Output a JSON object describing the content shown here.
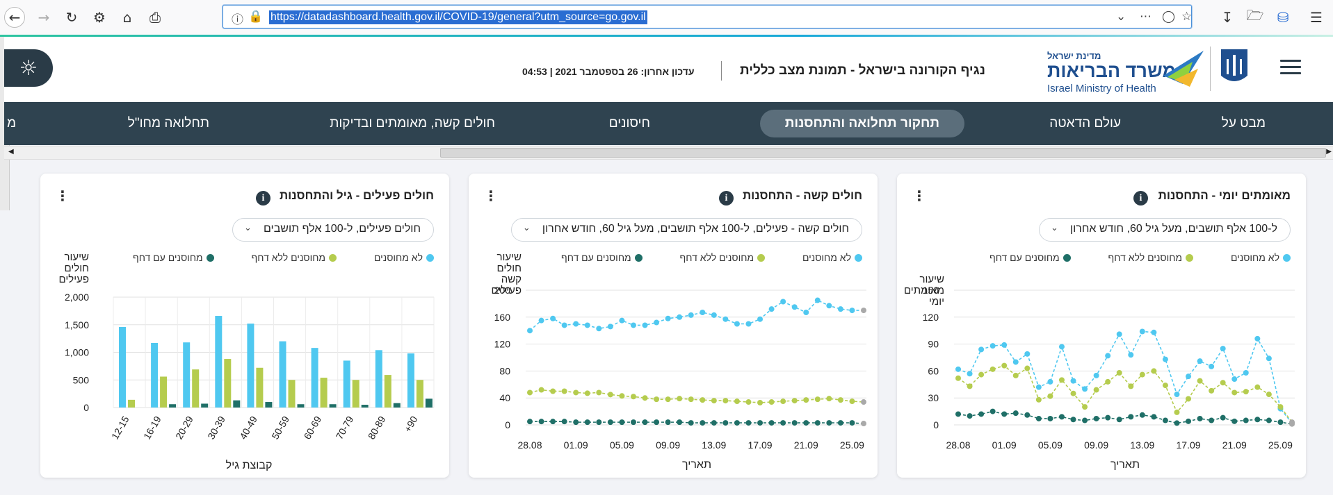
{
  "browser": {
    "url": "https://datadashboard.health.gov.il/COVID-19/general?utm_source=go.gov.il",
    "back_icon": "arrow-left-icon",
    "forward_icon": "arrow-right-icon",
    "reload_icon": "reload-icon",
    "settings_icon": "gear-icon",
    "home_icon": "home-icon",
    "print_icon": "printer-icon"
  },
  "header": {
    "update_text": "עדכון אחרון: 26 בספטמבר 2021 | 04:53",
    "title": "נגיף הקורונה בישראל - תמונת מצב כללית",
    "logo_top": "מדינת ישראל",
    "logo_main": "משרד הבריאות",
    "logo_en": "Israel Ministry of Health"
  },
  "tabs": [
    {
      "label": "מבט על",
      "active": false
    },
    {
      "label": "עולם הדאטה",
      "active": false
    },
    {
      "label": "תחקור תחלואה והתחסנות",
      "active": true
    },
    {
      "label": "חיסונים",
      "active": false
    },
    {
      "label": "חולים קשה, מאומתים ובדיקות",
      "active": false
    },
    {
      "label": "תחלואה מחו\"ל",
      "active": false
    },
    {
      "label": "מ",
      "active": false
    }
  ],
  "legend": {
    "unvaccinated": "לא מחוסנים",
    "no_booster": "מחוסנים ללא דחף",
    "booster": "מחוסנים עם דחף"
  },
  "colors": {
    "unvaccinated": "#4fc8f0",
    "no_booster": "#b5cc4e",
    "booster": "#1f6f67",
    "nav_bg": "#2f4350",
    "active_tab": "#5b6e7b"
  },
  "cards": [
    {
      "title": "מאומתים יומי - התחסנות",
      "dropdown": "ל-100 אלף תושבים, מעל גיל 60, חודש אחרון",
      "chart_data": {
        "type": "line",
        "ylabel": "שיעור מאומתים יומי",
        "xlabel": "תאריך",
        "ylim": [
          0,
          150
        ],
        "yticks": [
          0,
          30,
          60,
          90,
          120,
          150
        ],
        "x": [
          "28.08",
          "29.08",
          "30.08",
          "31.08",
          "01.09",
          "02.09",
          "03.09",
          "04.09",
          "05.09",
          "06.09",
          "07.09",
          "08.09",
          "09.09",
          "10.09",
          "11.09",
          "12.09",
          "13.09",
          "14.09",
          "15.09",
          "16.09",
          "17.09",
          "18.09",
          "19.09",
          "20.09",
          "21.09",
          "22.09",
          "23.09",
          "24.09",
          "25.09",
          "26.09"
        ],
        "xticks": [
          "28.08",
          "01.09",
          "05.09",
          "09.09",
          "13.09",
          "17.09",
          "21.09",
          "25.09"
        ],
        "series": [
          {
            "name": "לא מחוסנים",
            "values": [
              62,
              57,
              84,
              88,
              89,
              70,
              79,
              42,
              48,
              87,
              49,
              40,
              55,
              77,
              101,
              78,
              104,
              103,
              73,
              34,
              54,
              71,
              65,
              85,
              51,
              58,
              96,
              74,
              18,
              2
            ]
          },
          {
            "name": "מחוסנים ללא דחף",
            "values": [
              52,
              43,
              56,
              62,
              66,
              55,
              63,
              28,
              32,
              50,
              35,
              20,
              39,
              48,
              58,
              43,
              56,
              60,
              44,
              14,
              29,
              49,
              38,
              47,
              36,
              37,
              42,
              34,
              20,
              3
            ]
          },
          {
            "name": "מחוסנים עם דחף",
            "values": [
              12,
              10,
              12,
              15,
              12,
              13,
              11,
              7,
              7,
              9,
              6,
              5,
              7,
              8,
              6,
              9,
              11,
              9,
              5,
              2,
              4,
              7,
              5,
              8,
              4,
              5,
              6,
              5,
              3,
              1
            ]
          }
        ]
      }
    },
    {
      "title": "חולים קשה - התחסנות",
      "dropdown": "חולים קשה - פעילים, ל-100 אלף תושבים, מעל גיל 60, חודש אחרון",
      "chart_data": {
        "type": "line",
        "ylabel": "שיעור חולים קשה פעילים",
        "xlabel": "תאריך",
        "ylim": [
          0,
          200
        ],
        "yticks": [
          0,
          40,
          80,
          120,
          160,
          200
        ],
        "x": [
          "28.08",
          "29.08",
          "30.08",
          "31.08",
          "01.09",
          "02.09",
          "03.09",
          "04.09",
          "05.09",
          "06.09",
          "07.09",
          "08.09",
          "09.09",
          "10.09",
          "11.09",
          "12.09",
          "13.09",
          "14.09",
          "15.09",
          "16.09",
          "17.09",
          "18.09",
          "19.09",
          "20.09",
          "21.09",
          "22.09",
          "23.09",
          "24.09",
          "25.09",
          "26.09"
        ],
        "xticks": [
          "28.08",
          "01.09",
          "05.09",
          "09.09",
          "13.09",
          "17.09",
          "21.09",
          "25.09"
        ],
        "series": [
          {
            "name": "לא מחוסנים",
            "values": [
              140,
              155,
              158,
              148,
              150,
              148,
              143,
              146,
              155,
              148,
              148,
              152,
              158,
              160,
              163,
              167,
              163,
              157,
              150,
              150,
              157,
              172,
              183,
              175,
              167,
              185,
              177,
              172,
              170,
              170
            ]
          },
          {
            "name": "מחוסנים ללא דחף",
            "values": [
              48,
              52,
              50,
              50,
              48,
              47,
              48,
              45,
              43,
              42,
              40,
              38,
              38,
              39,
              38,
              37,
              36,
              36,
              35,
              34,
              33,
              34,
              35,
              36,
              37,
              38,
              39,
              37,
              35,
              34
            ]
          },
          {
            "name": "מחוסנים עם דחף",
            "values": [
              5,
              5,
              5,
              5,
              4,
              4,
              4,
              4,
              4,
              4,
              4,
              4,
              4,
              4,
              3,
              3,
              3,
              3,
              3,
              3,
              3,
              3,
              3,
              3,
              3,
              3,
              3,
              3,
              3,
              2
            ]
          }
        ]
      }
    },
    {
      "title": "חולים פעילים - גיל והתחסנות",
      "dropdown": "חולים פעילים, ל-100 אלף תושבים",
      "chart_data": {
        "type": "bar",
        "ylabel": "שיעור חולים פעילים",
        "xlabel": "קבוצת גיל",
        "ylim": [
          0,
          2000
        ],
        "yticks": [
          "0",
          "500",
          "1,000",
          "1,500",
          "2,000"
        ],
        "categories": [
          "12-15",
          "16-19",
          "20-29",
          "30-39",
          "40-49",
          "50-59",
          "60-69",
          "70-79",
          "80-89",
          "+90"
        ],
        "series": [
          {
            "name": "לא מחוסנים",
            "values": [
              1460,
              1170,
              1180,
              1660,
              1520,
              1200,
              1080,
              850,
              1040,
              980
            ]
          },
          {
            "name": "מחוסנים ללא דחף",
            "values": [
              140,
              560,
              690,
              880,
              720,
              500,
              540,
              500,
              590,
              500
            ]
          },
          {
            "name": "מחוסנים עם דחף",
            "values": [
              0,
              60,
              70,
              130,
              100,
              60,
              60,
              50,
              80,
              160
            ]
          }
        ]
      }
    }
  ]
}
